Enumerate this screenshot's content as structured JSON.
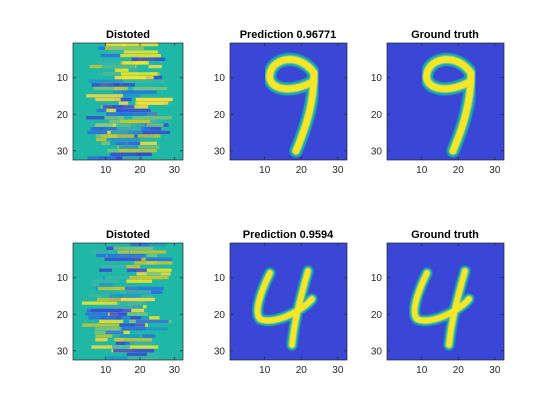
{
  "colormap": "parula",
  "chart_data": [
    {
      "type": "heatmap",
      "title": "Distoted",
      "image": "distorted-nine",
      "xlim": [
        0.5,
        32.5
      ],
      "ylim": [
        0.5,
        32.5
      ],
      "xticks": [
        "10",
        "20",
        "30"
      ],
      "yticks": [
        "10",
        "20",
        "30"
      ],
      "grid": false
    },
    {
      "type": "heatmap",
      "title": "Prediction 0.96771",
      "image": "digit-9",
      "xlim": [
        0.5,
        32.5
      ],
      "ylim": [
        0.5,
        32.5
      ],
      "xticks": [
        "10",
        "20",
        "30"
      ],
      "yticks": [
        "10",
        "20",
        "30"
      ],
      "grid": false
    },
    {
      "type": "heatmap",
      "title": "Ground truth",
      "image": "digit-9",
      "xlim": [
        0.5,
        32.5
      ],
      "ylim": [
        0.5,
        32.5
      ],
      "xticks": [
        "10",
        "20",
        "30"
      ],
      "yticks": [
        "10",
        "20",
        "30"
      ],
      "grid": false
    },
    {
      "type": "heatmap",
      "title": "Distoted",
      "image": "distorted-four",
      "xlim": [
        0.5,
        32.5
      ],
      "ylim": [
        0.5,
        32.5
      ],
      "xticks": [
        "10",
        "20",
        "30"
      ],
      "yticks": [
        "10",
        "20",
        "30"
      ],
      "grid": false
    },
    {
      "type": "heatmap",
      "title": "Prediction 0.9594",
      "image": "digit-4",
      "xlim": [
        0.5,
        32.5
      ],
      "ylim": [
        0.5,
        32.5
      ],
      "xticks": [
        "10",
        "20",
        "30"
      ],
      "yticks": [
        "10",
        "20",
        "30"
      ],
      "grid": false
    },
    {
      "type": "heatmap",
      "title": "Ground truth",
      "image": "digit-4",
      "xlim": [
        0.5,
        32.5
      ],
      "ylim": [
        0.5,
        32.5
      ],
      "xticks": [
        "10",
        "20",
        "30"
      ],
      "yticks": [
        "10",
        "20",
        "30"
      ],
      "grid": false
    }
  ]
}
